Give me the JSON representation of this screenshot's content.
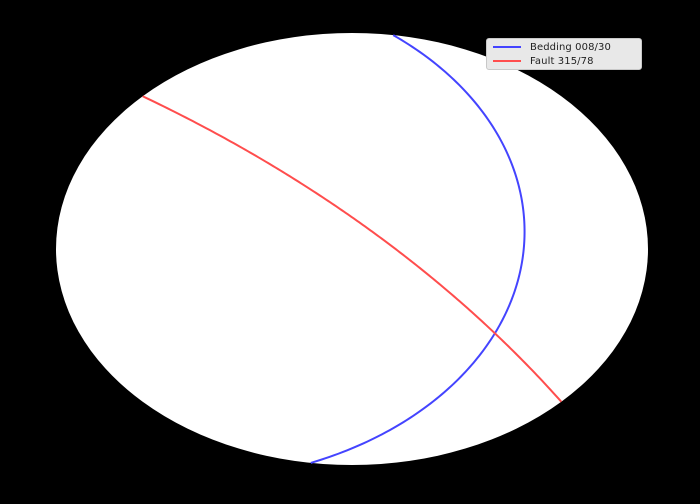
{
  "figure": {
    "background": "#000000",
    "net_fill": "#ffffff"
  },
  "planes": [
    {
      "label": "Bedding 008/30",
      "strike": 8,
      "dip": 30,
      "color": "#4444ff"
    },
    {
      "label": "Fault 315/78",
      "strike": 315,
      "dip": 78,
      "color": "#ff4d4d"
    }
  ],
  "legend": {
    "placement": "top-right",
    "background": "#e8e8e8"
  }
}
